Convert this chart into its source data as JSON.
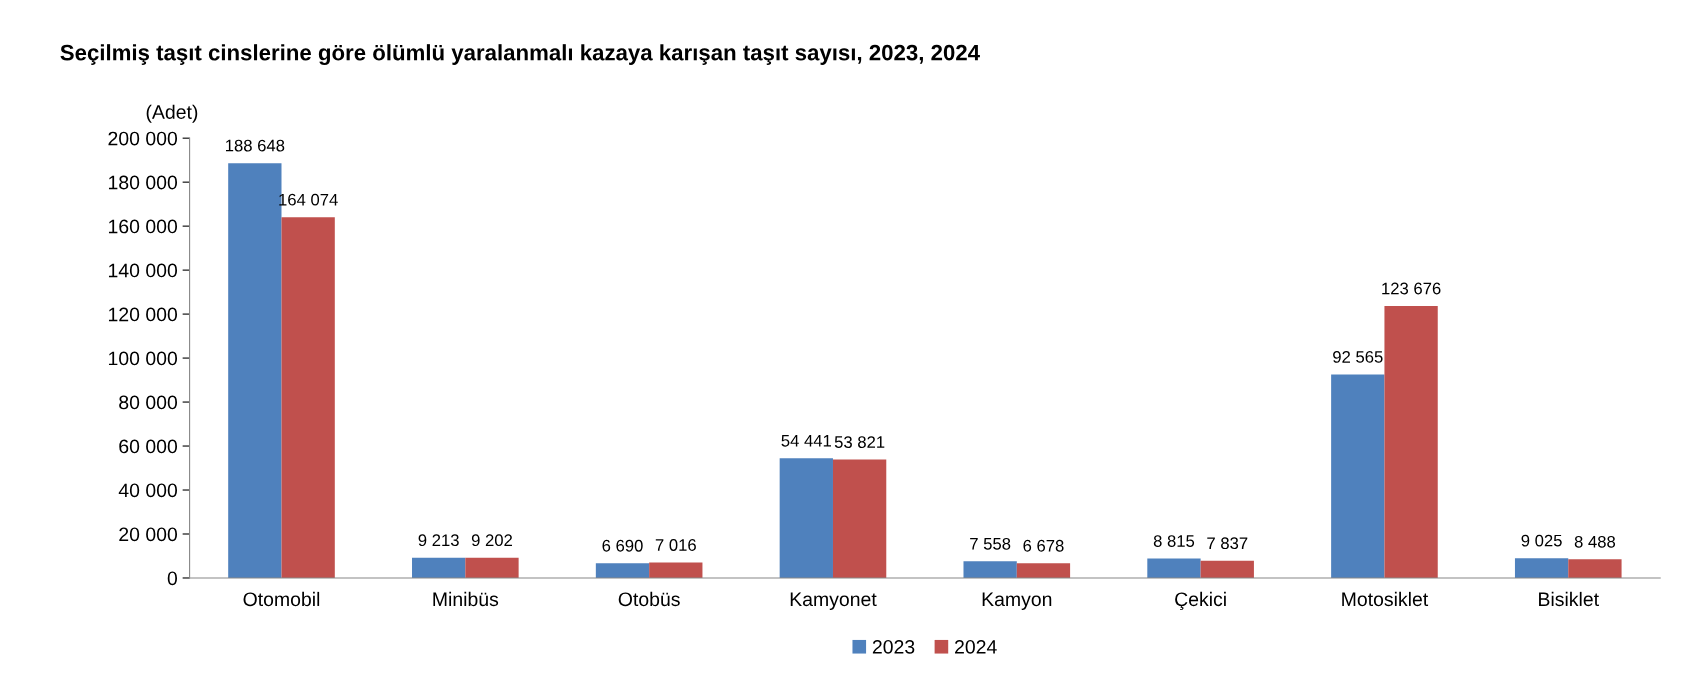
{
  "chart_data": {
    "type": "bar",
    "title": "Seçilmiş taşıt cinslerine göre ölümlü yaralanmalı kazaya karışan taşıt sayısı, 2023, 2024",
    "ylabel": "(Adet)",
    "categories": [
      "Otomobil",
      "Minibüs",
      "Otobüs",
      "Kamyonet",
      "Kamyon",
      "Çekici",
      "Motosiklet",
      "Bisiklet"
    ],
    "series": [
      {
        "name": "2023",
        "color": "#4f81bd",
        "values": [
          188648,
          9213,
          6690,
          54441,
          7558,
          8815,
          92565,
          9025
        ],
        "value_labels": [
          "188 648",
          "9 213",
          "6 690",
          "54 441",
          "7 558",
          "8 815",
          "92 565",
          "9 025"
        ]
      },
      {
        "name": "2024",
        "color": "#c0504d",
        "values": [
          164074,
          9202,
          7016,
          53821,
          6678,
          7837,
          123676,
          8488
        ],
        "value_labels": [
          "164 074",
          "9 202",
          "7 016",
          "53 821",
          "6 678",
          "7 837",
          "123 676",
          "8 488"
        ]
      }
    ],
    "ylim": [
      0,
      200000
    ],
    "yticks": [
      0,
      {
        "value": 20000,
        "label": "20 000"
      },
      {
        "value": 40000,
        "label": "40 000"
      },
      {
        "value": 60000,
        "label": "60 000"
      },
      {
        "value": 80000,
        "label": "80 000"
      },
      {
        "value": 100000,
        "label": "100 000"
      },
      {
        "value": 120000,
        "label": "120 000"
      },
      {
        "value": 140000,
        "label": "140 000"
      },
      {
        "value": 160000,
        "label": "160 000"
      },
      {
        "value": 180000,
        "label": "180 000"
      },
      {
        "value": 200000,
        "label": "200 000"
      }
    ],
    "grid": false,
    "legend": "bottom"
  }
}
